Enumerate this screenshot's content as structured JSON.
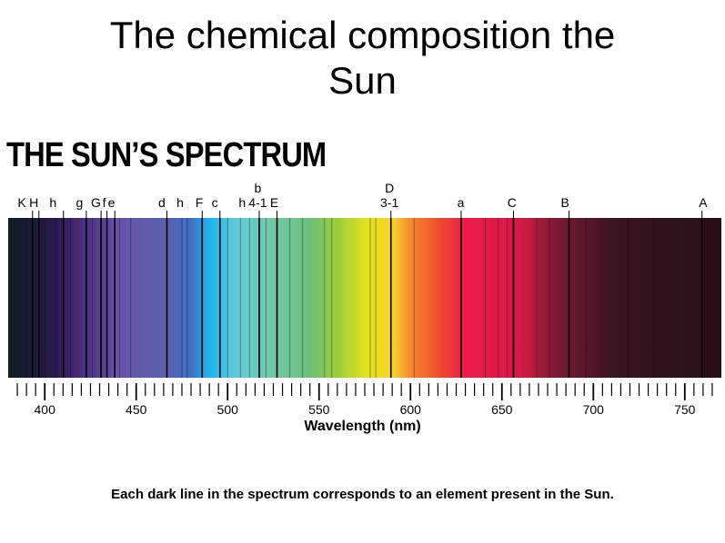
{
  "slide_title_line1": "The chemical composition the",
  "slide_title_line2": "Sun",
  "heading": "THE SUN’S SPECTRUM",
  "axis_title": "Wavelength (nm)",
  "caption": "Each dark line in the spectrum corresponds to an element present in the Sun.",
  "spectrum": {
    "wavelength_range_nm": [
      380,
      770
    ],
    "tick_labels": [
      400,
      450,
      500,
      550,
      600,
      650,
      700,
      750
    ],
    "minor_tick_step_nm": 5,
    "colors": [
      {
        "nm": 380,
        "color": "#0e1c25"
      },
      {
        "nm": 392,
        "color": "#1a1a35"
      },
      {
        "nm": 405,
        "color": "#2b1a4f"
      },
      {
        "nm": 420,
        "color": "#4a2d7b"
      },
      {
        "nm": 440,
        "color": "#6652a4"
      },
      {
        "nm": 465,
        "color": "#5e60b0"
      },
      {
        "nm": 480,
        "color": "#3f6ec2"
      },
      {
        "nm": 490,
        "color": "#1eb4ee"
      },
      {
        "nm": 505,
        "color": "#62c9d8"
      },
      {
        "nm": 525,
        "color": "#72c8a6"
      },
      {
        "nm": 545,
        "color": "#6dc07a"
      },
      {
        "nm": 560,
        "color": "#9ccd3d"
      },
      {
        "nm": 575,
        "color": "#e0e11e"
      },
      {
        "nm": 590,
        "color": "#f8d52b"
      },
      {
        "nm": 600,
        "color": "#f58a2d"
      },
      {
        "nm": 615,
        "color": "#f0502d"
      },
      {
        "nm": 630,
        "color": "#ec1c4d"
      },
      {
        "nm": 660,
        "color": "#d51a45"
      },
      {
        "nm": 680,
        "color": "#7a1a34"
      },
      {
        "nm": 710,
        "color": "#3d1424"
      },
      {
        "nm": 740,
        "color": "#2e1220"
      },
      {
        "nm": 770,
        "color": "#2a1018"
      }
    ],
    "lines": [
      {
        "nm": 393.3,
        "label": "K"
      },
      {
        "nm": 396.8,
        "label": "H"
      },
      {
        "nm": 410.2,
        "label": "h"
      },
      {
        "nm": 422.7,
        "label": "g"
      },
      {
        "nm": 430.8,
        "label": "G"
      },
      {
        "nm": 434.0,
        "label": "f"
      },
      {
        "nm": 438.3,
        "label": "e"
      },
      {
        "nm": 466.8,
        "label": "d"
      },
      {
        "nm": 486.1,
        "label": "F"
      },
      {
        "nm": 495.8,
        "label": "c"
      },
      {
        "nm": 517.3,
        "label": "b 4-1"
      },
      {
        "nm": 527.0,
        "label": "E"
      },
      {
        "nm": 589.3,
        "label": "D 3-1"
      },
      {
        "nm": 627.7,
        "label": "a"
      },
      {
        "nm": 656.3,
        "label": "C"
      },
      {
        "nm": 686.7,
        "label": "B"
      },
      {
        "nm": 759.4,
        "label": "A"
      }
    ],
    "labels": [
      {
        "text": "K",
        "nm": 387.5,
        "row": 0
      },
      {
        "text": "H",
        "nm": 394.0,
        "row": 0
      },
      {
        "text": "h",
        "nm": 404.5,
        "row": 0
      },
      {
        "text": "g",
        "nm": 419.0,
        "row": 0
      },
      {
        "text": "G",
        "nm": 428.0,
        "row": 0
      },
      {
        "text": "f",
        "nm": 432.5,
        "row": 0
      },
      {
        "text": "e",
        "nm": 436.5,
        "row": 0
      },
      {
        "text": "d",
        "nm": 464.0,
        "row": 0
      },
      {
        "text": "h",
        "nm": 474.0,
        "row": 0
      },
      {
        "text": "F",
        "nm": 484.5,
        "row": 0
      },
      {
        "text": "c",
        "nm": 493.0,
        "row": 0
      },
      {
        "text": "h",
        "nm": 508.0,
        "row": 0
      },
      {
        "text": "b",
        "nm": 516.5,
        "row": 1
      },
      {
        "text": "4-1",
        "nm": 516.5,
        "row": 0
      },
      {
        "text": "E",
        "nm": 525.5,
        "row": 0
      },
      {
        "text": "D",
        "nm": 588.5,
        "row": 1
      },
      {
        "text": "3-1",
        "nm": 588.5,
        "row": 0
      },
      {
        "text": "a",
        "nm": 627.5,
        "row": 0
      },
      {
        "text": "C",
        "nm": 655.5,
        "row": 0
      },
      {
        "text": "B",
        "nm": 684.5,
        "row": 0
      },
      {
        "text": "A",
        "nm": 760.0,
        "row": 0
      }
    ],
    "thin_lines_nm": [
      390,
      400,
      406,
      414,
      426,
      441,
      447,
      475,
      478,
      500,
      507,
      512,
      521,
      534,
      541,
      553,
      557,
      578,
      581,
      602,
      641,
      648,
      653,
      669,
      676,
      696,
      719,
      733
    ]
  }
}
